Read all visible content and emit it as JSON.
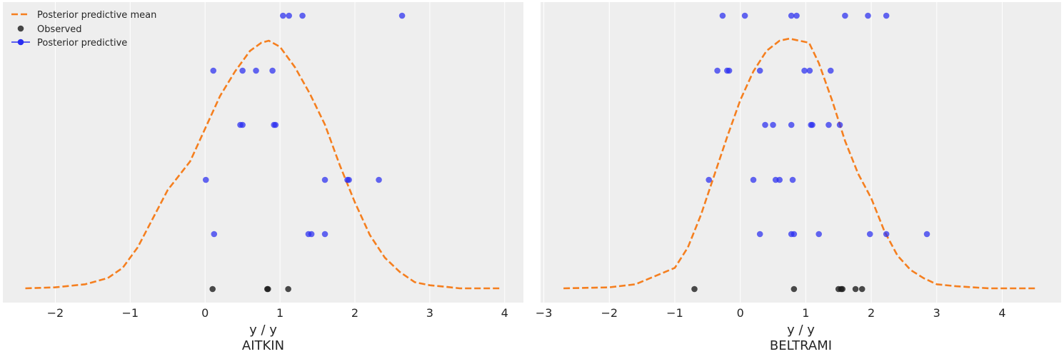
{
  "chart_data": [
    {
      "type": "scatter",
      "title": "",
      "xlabel": "y / y",
      "panel_label": "AITKIN",
      "xlim": [
        -2.7,
        4.25
      ],
      "xticks": [
        -2,
        -1,
        0,
        1,
        2,
        3,
        4
      ],
      "xtick_labels": [
        "−2",
        "−1",
        "0",
        "1",
        "2",
        "3",
        "4"
      ],
      "grid": true,
      "legend_position": "top-left",
      "legend": [
        "Posterior predictive mean",
        "Observed",
        "Posterior predictive"
      ],
      "posterior_predictive_mean": {
        "x": [
          -2.4,
          -2.0,
          -1.6,
          -1.3,
          -1.1,
          -0.9,
          -0.7,
          -0.5,
          -0.2,
          0.0,
          0.2,
          0.4,
          0.6,
          0.75,
          0.85,
          1.0,
          1.2,
          1.4,
          1.6,
          1.8,
          2.0,
          2.2,
          2.4,
          2.6,
          2.8,
          3.0,
          3.2,
          3.4,
          3.95
        ],
        "y": [
          0.0,
          0.005,
          0.02,
          0.05,
          0.1,
          0.2,
          0.34,
          0.48,
          0.62,
          0.78,
          0.94,
          1.06,
          1.16,
          1.2,
          1.21,
          1.18,
          1.08,
          0.95,
          0.8,
          0.6,
          0.42,
          0.26,
          0.15,
          0.08,
          0.03,
          0.015,
          0.008,
          0.0,
          0.0
        ]
      },
      "observed": [
        0.1,
        0.83,
        0.84,
        1.11
      ],
      "posterior_predictive": [
        [
          0.12,
          1.38,
          1.42,
          1.6
        ],
        [
          0.01,
          1.6,
          1.9,
          1.92,
          2.32
        ],
        [
          0.47,
          0.5,
          0.92,
          0.94
        ],
        [
          0.11,
          0.5,
          0.68,
          0.9
        ],
        [
          1.04,
          1.12,
          1.3,
          2.63
        ]
      ]
    },
    {
      "type": "scatter",
      "title": "",
      "xlabel": "y / y",
      "panel_label": "BELTRAMI",
      "xlim": [
        -3.05,
        4.9
      ],
      "xticks": [
        -3,
        -2,
        -1,
        0,
        1,
        2,
        3,
        4
      ],
      "xtick_labels": [
        "−3",
        "−2",
        "−1",
        "0",
        "1",
        "2",
        "3",
        "4"
      ],
      "grid": true,
      "posterior_predictive_mean": {
        "x": [
          -2.7,
          -2.0,
          -1.6,
          -1.3,
          -1.0,
          -0.8,
          -0.6,
          -0.4,
          -0.2,
          0.0,
          0.2,
          0.4,
          0.6,
          0.75,
          0.9,
          1.05,
          1.2,
          1.4,
          1.6,
          1.8,
          2.0,
          2.2,
          2.4,
          2.6,
          2.8,
          3.0,
          3.3,
          3.8,
          4.5
        ],
        "y": [
          0.0,
          0.005,
          0.02,
          0.06,
          0.1,
          0.2,
          0.36,
          0.55,
          0.74,
          0.92,
          1.06,
          1.16,
          1.21,
          1.22,
          1.21,
          1.2,
          1.1,
          0.92,
          0.72,
          0.56,
          0.44,
          0.28,
          0.16,
          0.09,
          0.05,
          0.02,
          0.01,
          0.0,
          0.0
        ]
      },
      "observed": [
        -0.7,
        0.82,
        1.5,
        1.54,
        1.56,
        1.76,
        1.86
      ],
      "posterior_predictive": [
        [
          0.3,
          0.78,
          0.82,
          1.2,
          1.98,
          2.23,
          2.85
        ],
        [
          -0.48,
          0.2,
          0.54,
          0.6,
          0.8
        ],
        [
          0.38,
          0.5,
          0.78,
          1.08,
          1.1,
          1.35,
          1.52
        ],
        [
          -0.35,
          -0.2,
          -0.17,
          0.3,
          0.98,
          1.06,
          1.38
        ],
        [
          -0.27,
          0.07,
          0.78,
          0.86,
          1.6,
          1.95,
          2.23
        ]
      ]
    }
  ],
  "colors": {
    "mean": "#f57f1f",
    "observed": "#1a1a1a",
    "predictive": "#2a2ef0",
    "panel_bg": "#eeeeee",
    "grid": "#ffffff"
  }
}
